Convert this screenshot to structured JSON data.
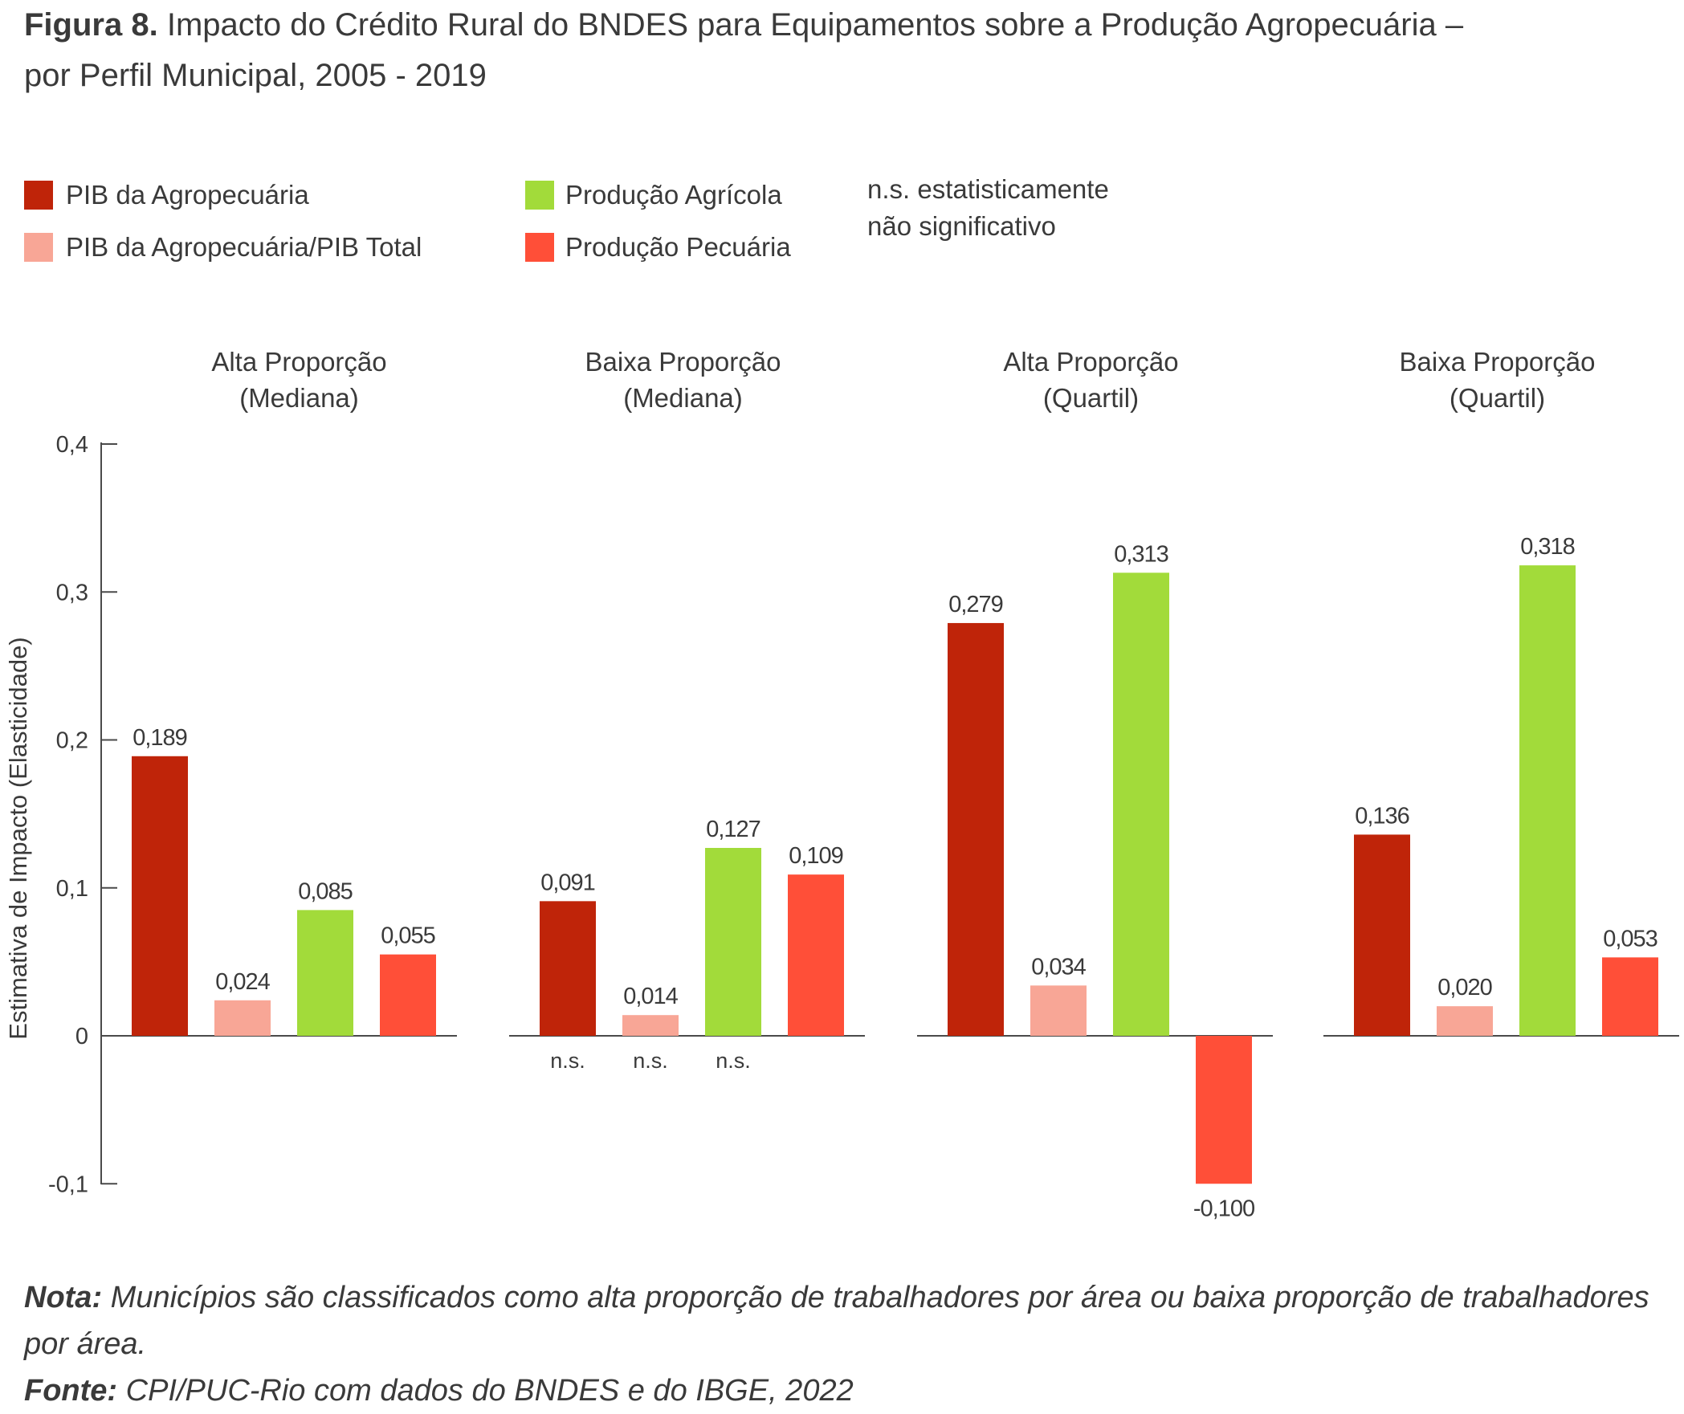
{
  "title": {
    "prefix": "Figura 8.",
    "line1": "Impacto do Crédito Rural do BNDES para Equipamentos sobre a Produção Agropecuária –",
    "line2": "por Perfil Municipal, 2005 - 2019"
  },
  "legend": {
    "items": [
      {
        "label": "PIB da Agropecuária",
        "color": "#BF2409"
      },
      {
        "label": "PIB da Agropecuária/PIB Total",
        "color": "#F8A696"
      },
      {
        "label": "Produção Agrícola",
        "color": "#A2DB3A"
      },
      {
        "label": "Produção Pecuária",
        "color": "#FF4F38"
      }
    ],
    "ns_note_line1": "n.s. estatisticamente",
    "ns_note_line2": "não significativo"
  },
  "chart_data": {
    "type": "bar",
    "ylabel": "Estimativa de Impacto (Elasticidade)",
    "ylim": [
      -0.1,
      0.4
    ],
    "yticks": [
      {
        "value": 0.4,
        "label": "0,4"
      },
      {
        "value": 0.3,
        "label": "0,3"
      },
      {
        "value": 0.2,
        "label": "0,2"
      },
      {
        "value": 0.1,
        "label": "0,1"
      },
      {
        "value": 0,
        "label": "0"
      },
      {
        "value": -0.1,
        "label": "-0,1"
      }
    ],
    "series_names": [
      "PIB da Agropecuária",
      "PIB da Agropecuária/PIB Total",
      "Produção Agrícola",
      "Produção Pecuária"
    ],
    "groups": [
      {
        "title_line1": "Alta Proporção",
        "title_line2": "(Mediana)",
        "values": [
          0.189,
          0.024,
          0.085,
          0.055
        ],
        "labels": [
          "0,189",
          "0,024",
          "0,085",
          "0,055"
        ],
        "ns": [
          "",
          "",
          "",
          ""
        ]
      },
      {
        "title_line1": "Baixa Proporção",
        "title_line2": "(Mediana)",
        "values": [
          0.091,
          0.014,
          0.127,
          0.109
        ],
        "labels": [
          "0,091",
          "0,014",
          "0,127",
          "0,109"
        ],
        "ns": [
          "n.s.",
          "n.s.",
          "n.s.",
          ""
        ]
      },
      {
        "title_line1": "Alta Proporção",
        "title_line2": "(Quartil)",
        "values": [
          0.279,
          0.034,
          0.313,
          -0.1
        ],
        "labels": [
          "0,279",
          "0,034",
          "0,313",
          "-0,100"
        ],
        "ns": [
          "",
          "",
          "",
          ""
        ]
      },
      {
        "title_line1": "Baixa Proporção",
        "title_line2": "(Quartil)",
        "values": [
          0.136,
          0.02,
          0.318,
          0.053
        ],
        "labels": [
          "0,136",
          "0,020",
          "0,318",
          "0,053"
        ],
        "ns": [
          "",
          "",
          "",
          ""
        ]
      }
    ]
  },
  "footer": {
    "nota_label": "Nota:",
    "nota_text": " Municípios são classificados como alta proporção de trabalhadores por área ou baixa proporção de trabalhadores por área.",
    "fonte_label": "Fonte:",
    "fonte_text": " CPI/PUC-Rio com dados do BNDES e do IBGE, 2022"
  }
}
